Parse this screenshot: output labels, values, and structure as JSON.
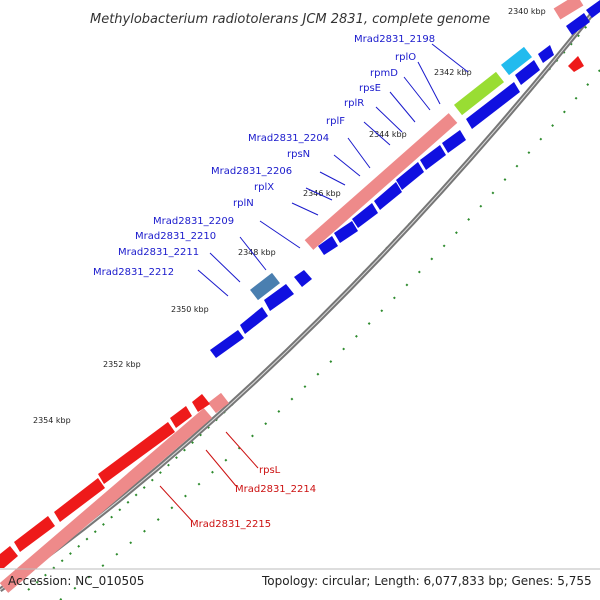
{
  "title": "Methylobacterium radiotolerans JCM 2831, complete genome",
  "footer": {
    "accession": "Accession: NC_010505",
    "summary": "Topology: circular; Length: 6,077,833 bp; Genes: 5,755"
  },
  "kbp_ticks": [
    "2340 kbp",
    "2342 kbp",
    "2344 kbp",
    "2346 kbp",
    "2348 kbp",
    "2350 kbp",
    "2352 kbp",
    "2354 kbp"
  ],
  "gene_labels_forward": [
    "Mrad2831_2198",
    "rplO",
    "rpmD",
    "rpsE",
    "rplR",
    "rplF",
    "Mrad2831_2204",
    "rpsN",
    "Mrad2831_2206",
    "rplX",
    "rplN",
    "Mrad2831_2209",
    "Mrad2831_2210",
    "Mrad2831_2211",
    "Mrad2831_2212"
  ],
  "gene_labels_reverse": [
    "rpsL",
    "Mrad2831_2214",
    "Mrad2831_2215"
  ],
  "colors": {
    "forward_label": "#1a1acc",
    "reverse_label": "#cc1111",
    "backbone": "#777777",
    "tick": "#2e8b2e",
    "blue_cds": "#1010e0",
    "red_cds": "#ee1a1a",
    "pink_gene": "#ee8a8a",
    "lime_gene": "#99dd33",
    "cyan_gene": "#22bbee",
    "steel_gene": "#4a7fb0"
  }
}
